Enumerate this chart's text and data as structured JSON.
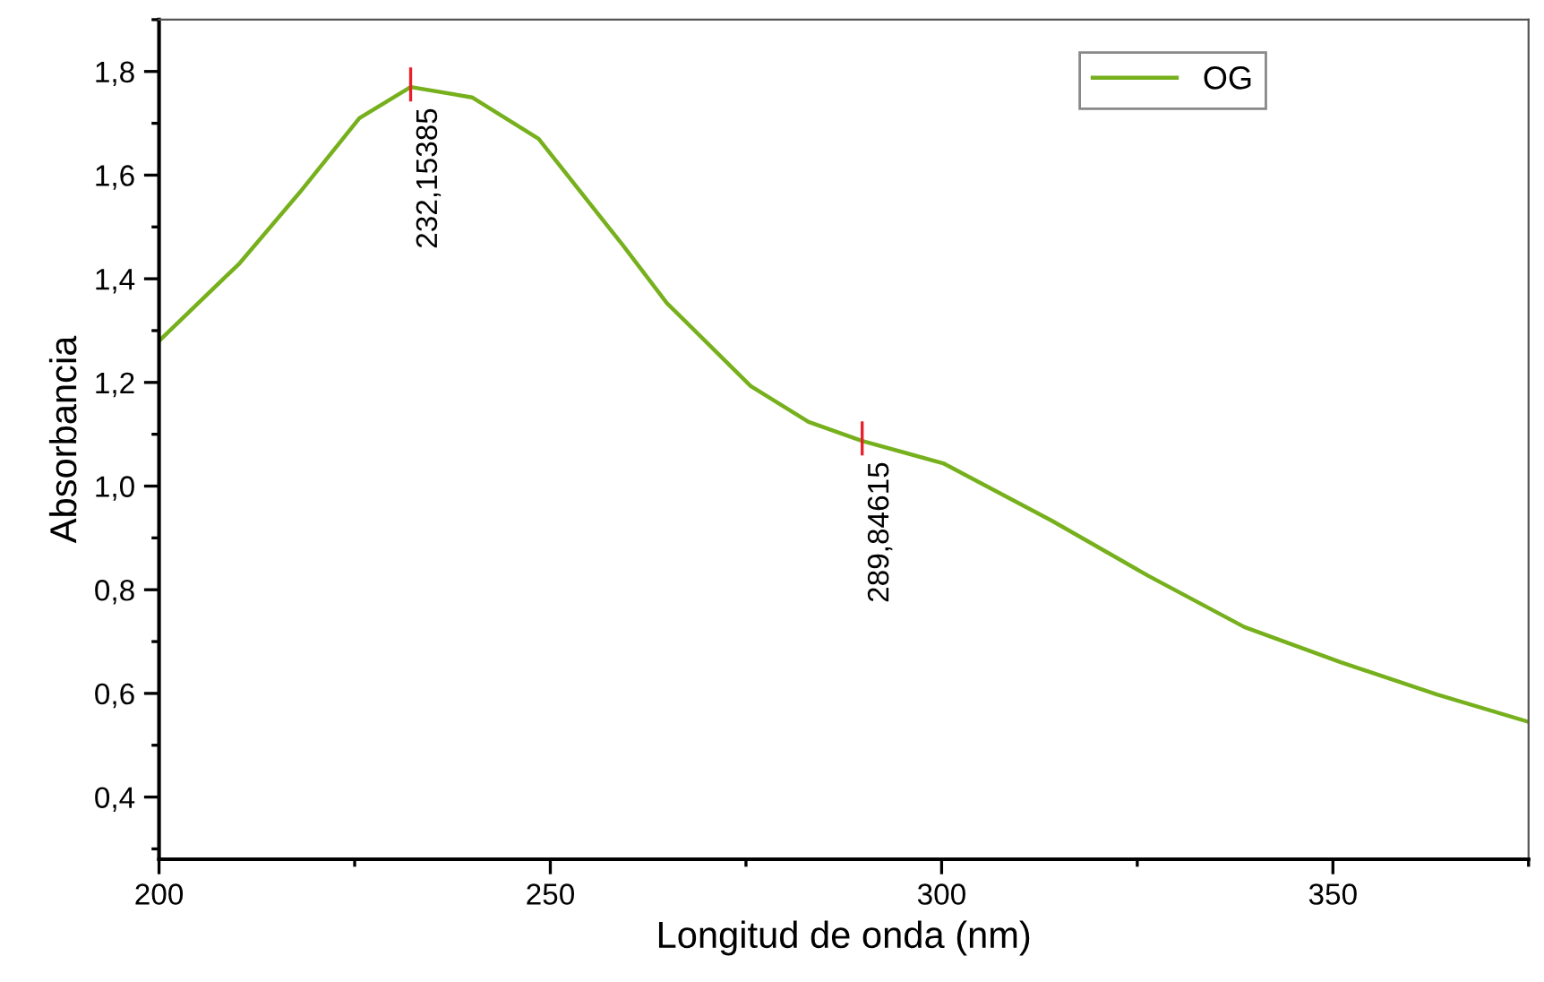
{
  "chart_data": {
    "type": "line",
    "xlabel": "Longitud de onda (nm)",
    "ylabel": "Absorbancia",
    "x": [
      200,
      210.3,
      218,
      225.6,
      232.15,
      240,
      248.5,
      259.2,
      264.9,
      275.6,
      283,
      289.85,
      300.2,
      314.1,
      326.4,
      338.7,
      351,
      363.3,
      375
    ],
    "series": [
      {
        "name": "OG",
        "color": "#76b01c",
        "values": [
          1.28,
          1.43,
          1.567,
          1.71,
          1.77,
          1.75,
          1.67,
          1.466,
          1.353,
          1.193,
          1.124,
          1.087,
          1.044,
          0.933,
          0.827,
          0.728,
          0.66,
          0.598,
          0.545
        ]
      }
    ],
    "annotations": [
      {
        "text": "232,15385",
        "x": 232.15,
        "y": 1.77
      },
      {
        "text": "289,84615",
        "x": 289.85,
        "y": 1.087
      }
    ],
    "xlim": [
      200,
      375
    ],
    "xticks": [
      200,
      250,
      300,
      350
    ],
    "ylim": [
      0.28,
      1.9
    ],
    "yticks": [
      {
        "value": 0.4,
        "label": "0,4"
      },
      {
        "value": 0.6,
        "label": "0,6"
      },
      {
        "value": 0.8,
        "label": "0,8"
      },
      {
        "value": 1.0,
        "label": "1,0"
      },
      {
        "value": 1.2,
        "label": "1,2"
      },
      {
        "value": 1.4,
        "label": "1,4"
      },
      {
        "value": 1.6,
        "label": "1,6"
      },
      {
        "value": 1.8,
        "label": "1,8"
      }
    ],
    "legend": "top right",
    "grid": false,
    "marker": "none",
    "line_style": "solid"
  }
}
